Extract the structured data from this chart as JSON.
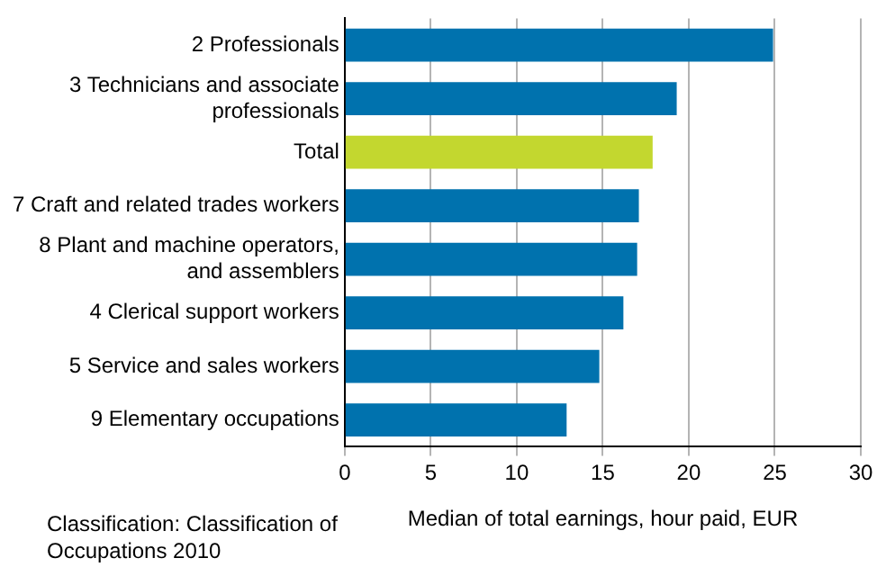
{
  "chart_data": {
    "type": "bar",
    "orientation": "horizontal",
    "categories": [
      "2 Professionals",
      "3 Technicians and associate professionals",
      "Total",
      "7 Craft and related trades workers",
      "8 Plant and machine operators, and assemblers",
      "4 Clerical support workers",
      "5 Service and sales workers",
      "9 Elementary occupations"
    ],
    "values": [
      24.9,
      19.3,
      17.9,
      17.1,
      17.0,
      16.2,
      14.8,
      12.9
    ],
    "colors": [
      "#0072ae",
      "#0072ae",
      "#c3d72f",
      "#0072ae",
      "#0072ae",
      "#0072ae",
      "#0072ae",
      "#0072ae"
    ],
    "xlabel": "Median of total earnings, hour paid, EUR",
    "xlim": [
      0,
      30
    ],
    "xticks": [
      0,
      5,
      10,
      15,
      20,
      25,
      30
    ],
    "grid": "x",
    "legend": false,
    "annotations": [
      "Classification: Classification of Occupations 2010"
    ]
  }
}
